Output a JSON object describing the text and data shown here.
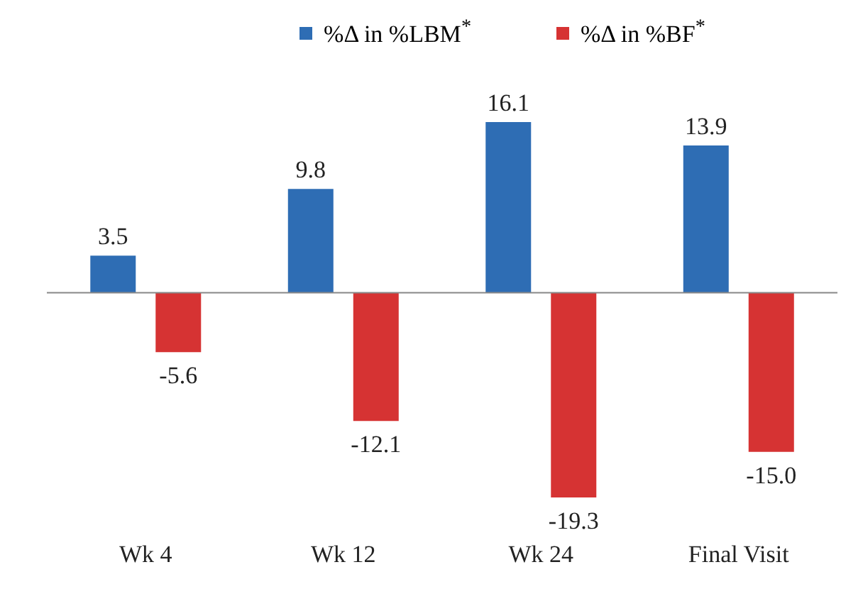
{
  "chart_data": {
    "type": "bar",
    "categories": [
      "Wk 4",
      "Wk 12",
      "Wk 24",
      "Final Visit"
    ],
    "series": [
      {
        "name": "%Δ in %LBM$^{*}$",
        "color": "#2e6db4",
        "values": [
          3.5,
          9.8,
          16.1,
          13.9
        ],
        "value_labels": [
          "3.5",
          "9.8",
          "16.1",
          "13.9"
        ]
      },
      {
        "name": "%Δ in %BF$^{*}$",
        "color": "#d63333",
        "values": [
          -5.6,
          -12.1,
          -19.3,
          -15.0
        ],
        "value_labels": [
          "-5.6",
          "-12.1",
          "-19.3",
          "-15.0"
        ]
      }
    ],
    "legend": "top",
    "grid": false
  }
}
